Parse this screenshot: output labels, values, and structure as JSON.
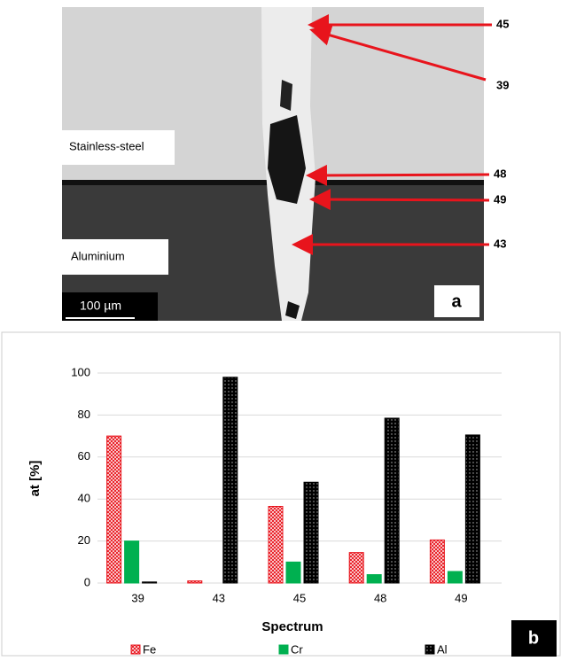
{
  "image_panel": {
    "panel_label": "a",
    "regions": [
      "Stainless-steel",
      "Aluminium"
    ],
    "scale_bar": "100 µm",
    "annotations": [
      "45",
      "39",
      "48",
      "49",
      "43"
    ]
  },
  "chart_data": {
    "type": "bar",
    "panel_label": "b",
    "x_label": "Spectrum",
    "y_label": "at [%]",
    "categories": [
      "39",
      "43",
      "45",
      "48",
      "49"
    ],
    "series": [
      {
        "name": "Fe",
        "color": "#e8141c",
        "values": [
          70,
          1,
          36.5,
          14.5,
          20.5
        ]
      },
      {
        "name": "Cr",
        "color": "#00b050",
        "values": [
          20,
          0,
          10,
          4,
          5.5
        ]
      },
      {
        "name": "Al",
        "color": "#000000",
        "values": [
          0.5,
          98,
          48,
          78.5,
          70.5
        ]
      }
    ],
    "ylim": [
      0,
      100
    ],
    "yticks": [
      0,
      20,
      40,
      60,
      80,
      100
    ],
    "grid": true
  }
}
